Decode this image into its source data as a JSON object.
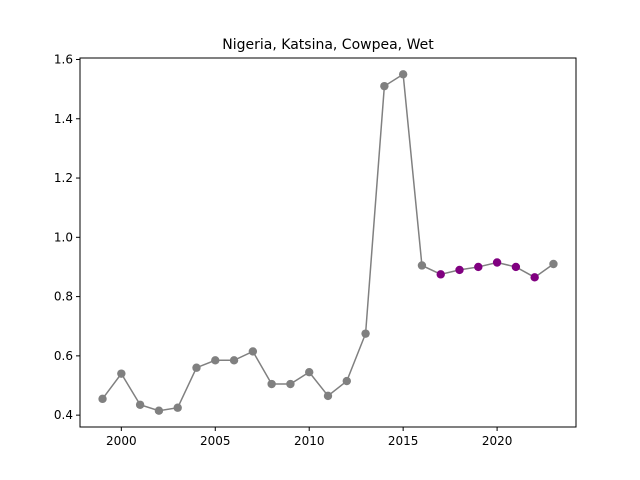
{
  "chart_data": {
    "type": "line",
    "title": "Nigeria, Katsina, Cowpea, Wet",
    "xlabel": "",
    "ylabel": "",
    "xlim": [
      1997.8,
      2024.2
    ],
    "ylim": [
      0.36,
      1.605
    ],
    "xticks": [
      2000,
      2005,
      2010,
      2015,
      2020
    ],
    "yticks": [
      0.4,
      0.6,
      0.8,
      1.0,
      1.2,
      1.4,
      1.6
    ],
    "xtick_labels": [
      "2000",
      "2005",
      "2010",
      "2015",
      "2020"
    ],
    "ytick_labels": [
      "0.4",
      "0.6",
      "0.8",
      "1.0",
      "1.2",
      "1.4",
      "1.6"
    ],
    "grid": false,
    "line_color": "#808080",
    "marker_colors": {
      "gray": "#808080",
      "purple": "#800080"
    },
    "series": [
      {
        "x": [
          1999,
          2000,
          2001,
          2002,
          2003,
          2004,
          2005,
          2006,
          2007,
          2008,
          2009,
          2010,
          2011,
          2012,
          2013,
          2014,
          2015,
          2016,
          2017,
          2018,
          2019,
          2020,
          2021,
          2022,
          2023
        ],
        "values": [
          0.455,
          0.54,
          0.435,
          0.415,
          0.425,
          0.56,
          0.585,
          0.585,
          0.615,
          0.505,
          0.505,
          0.545,
          0.465,
          0.515,
          0.675,
          1.51,
          1.55,
          0.905,
          0.875,
          0.89,
          0.9,
          0.915,
          0.9,
          0.865,
          0.91
        ],
        "marker_color_keys": [
          "gray",
          "gray",
          "gray",
          "gray",
          "gray",
          "gray",
          "gray",
          "gray",
          "gray",
          "gray",
          "gray",
          "gray",
          "gray",
          "gray",
          "gray",
          "gray",
          "gray",
          "gray",
          "purple",
          "purple",
          "purple",
          "purple",
          "purple",
          "purple",
          "gray"
        ]
      }
    ]
  }
}
